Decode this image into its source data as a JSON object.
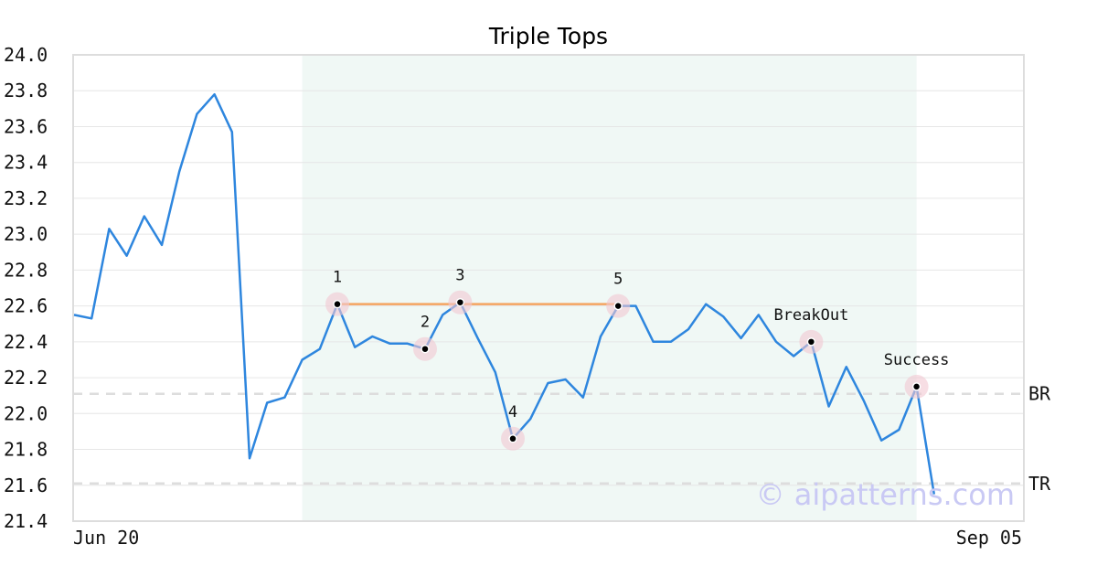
{
  "chart_data": {
    "type": "line",
    "title": "Triple Tops",
    "ylim": [
      21.4,
      24.0
    ],
    "yticks": [
      "24.0",
      "23.8",
      "23.6",
      "23.4",
      "23.2",
      "23.0",
      "22.8",
      "22.6",
      "22.4",
      "22.2",
      "22.0",
      "21.8",
      "21.6",
      "21.4"
    ],
    "x_start_label": "Jun 20",
    "x_end_label": "Sep 05",
    "series": [
      {
        "values": [
          22.55,
          22.53,
          23.03,
          22.88,
          23.1,
          22.94,
          23.35,
          23.67,
          23.78,
          23.57,
          21.75,
          22.06,
          22.09,
          22.3,
          22.36,
          22.61,
          22.37,
          22.43,
          22.39,
          22.39,
          22.36,
          22.55,
          22.62,
          22.42,
          22.23,
          21.86,
          21.97,
          22.17,
          22.19,
          22.09,
          22.43,
          22.6,
          22.6,
          22.4,
          22.4,
          22.47,
          22.61,
          22.54,
          22.42,
          22.55,
          22.4,
          22.32,
          22.4,
          22.04,
          22.26,
          22.07,
          21.85,
          21.91,
          22.15,
          21.55
        ],
        "color": "#2e86de"
      }
    ],
    "shaded_region": {
      "x_from": 13,
      "x_to": 48,
      "color": "#e6f4ef"
    },
    "resistance_line": {
      "x_from": 15,
      "x_to": 31,
      "y": 22.61,
      "color": "#f4a460"
    },
    "reference_lines": [
      {
        "label": "BR",
        "y": 22.11
      },
      {
        "label": "TR",
        "y": 21.61
      }
    ],
    "points": [
      {
        "label": "1",
        "x": 15,
        "y": 22.61
      },
      {
        "label": "2",
        "x": 20,
        "y": 22.36
      },
      {
        "label": "3",
        "x": 22,
        "y": 22.62
      },
      {
        "label": "4",
        "x": 25,
        "y": 21.86
      },
      {
        "label": "5",
        "x": 31,
        "y": 22.6
      },
      {
        "label": "BreakOut",
        "x": 42,
        "y": 22.4
      },
      {
        "label": "Success",
        "x": 48,
        "y": 22.15
      }
    ],
    "watermark": "© aipatterns.com",
    "grid": true
  }
}
